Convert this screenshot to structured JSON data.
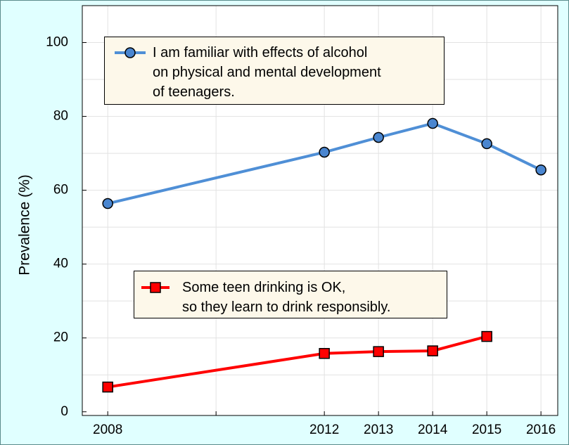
{
  "chart_data": {
    "type": "line",
    "ylabel": "Prevalence (%)",
    "x": [
      2008,
      2012,
      2013,
      2014,
      2015,
      2016
    ],
    "series": [
      {
        "name": "I am familiar with effects of alcohol\non physical and mental development\nof teenagers.",
        "color": "#4f8fd6",
        "marker_color": "#4a86d0",
        "marker": "circle",
        "values": [
          56.4,
          70.3,
          74.3,
          78.1,
          72.6,
          65.5
        ]
      },
      {
        "name": "Some teen drinking is OK,\nso they learn to drink responsibly.",
        "color": "#ff0000",
        "marker_color": "#ff0000",
        "marker": "square",
        "values": [
          6.7,
          15.8,
          16.3,
          16.5,
          20.4,
          null
        ]
      }
    ],
    "xlim": [
      2007.53,
      2016.31
    ],
    "xticks": [
      2008,
      2012,
      2013,
      2014,
      2015,
      2016
    ],
    "xgrid": [
      2008,
      2010,
      2012,
      2013,
      2014,
      2015,
      2016
    ],
    "ylim": [
      -1,
      110
    ],
    "yticks": [
      0,
      20,
      40,
      60,
      80,
      100
    ],
    "ygrid": [
      10,
      20,
      30,
      40,
      50,
      60,
      70,
      80,
      90,
      100
    ],
    "grid": true
  }
}
